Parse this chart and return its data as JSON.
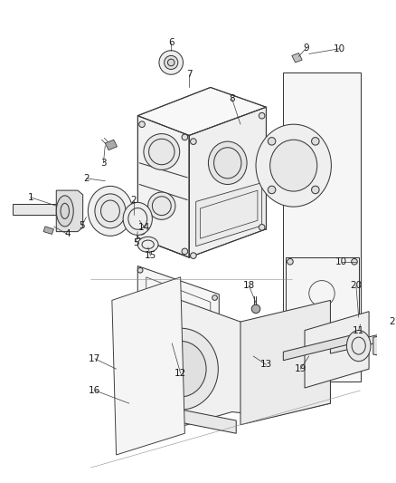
{
  "bg_color": "#ffffff",
  "line_color": "#3a3a3a",
  "label_color": "#1a1a1a",
  "fig_width": 4.39,
  "fig_height": 5.33,
  "dpi": 100,
  "lw": 0.75
}
